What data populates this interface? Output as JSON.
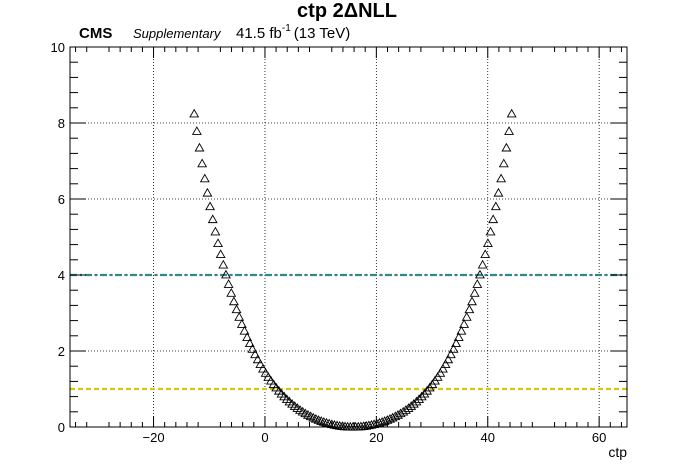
{
  "header": {
    "title": "ctp 2ΔNLL",
    "experiment": "CMS",
    "status": "Supplementary",
    "lumi_value": "41.5 fb",
    "lumi_exp": "-1",
    "energy": "(13 TeV)"
  },
  "colors": {
    "line_2sigma": "#2e8b8b",
    "line_1sigma": "#d4c800",
    "markers": "#000000",
    "grid": "#000000"
  },
  "chart_data": {
    "type": "scatter",
    "title": "ctp 2ΔNLL",
    "xlabel": "ctp",
    "ylabel": "",
    "xlim": [
      -35,
      65
    ],
    "ylim": [
      0,
      10
    ],
    "grid": true,
    "marker": "open-triangle",
    "x_ticks": [
      -20,
      0,
      20,
      40,
      60
    ],
    "x_tick_labels": [
      "−20",
      "0",
      "20",
      "40",
      "60"
    ],
    "y_ticks": [
      0,
      2,
      4,
      6,
      8,
      10
    ],
    "y_tick_labels": [
      "0",
      "2",
      "4",
      "6",
      "8",
      "10"
    ],
    "x_range_scanned": [
      -12.7,
      44.3
    ],
    "best_fit_x": 15.8,
    "shape": "approximately parabolic; 2ΔNLL = 1 near x = 2.2 and x = 29.4; 2ΔNLL = 4 near x = -5.6 and x = 37.2",
    "reference_lines": [
      {
        "y": 4,
        "style": "dash-dot",
        "color": "#2e8b8b"
      },
      {
        "y": 1,
        "style": "dashed",
        "color": "#d4c800"
      }
    ]
  }
}
